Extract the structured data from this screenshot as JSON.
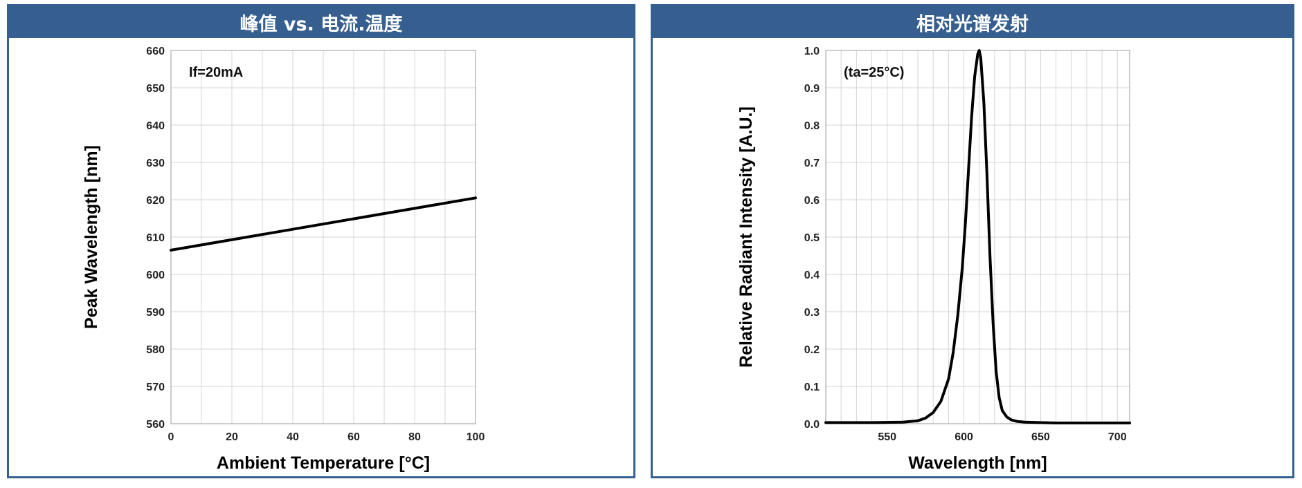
{
  "panels": {
    "left": {
      "header": "峰值 vs. 电流.温度"
    },
    "right": {
      "header": "相对光谱发射"
    }
  },
  "chart_data": [
    {
      "type": "line",
      "xlabel": "Ambient Temperature [°C]",
      "ylabel": "Peak Wavelength [nm]",
      "annotation": "If=20mA",
      "xlim": [
        0,
        100
      ],
      "ylim": [
        560,
        660
      ],
      "xticks": [
        0,
        20,
        40,
        60,
        80,
        100
      ],
      "yticks": [
        560,
        570,
        580,
        590,
        600,
        610,
        620,
        630,
        640,
        650,
        660
      ],
      "grid": true,
      "series": [
        {
          "x": [
            0,
            100
          ],
          "y": [
            606.5,
            620.5
          ]
        }
      ]
    },
    {
      "type": "line",
      "xlabel": "Wavelength [nm]",
      "ylabel": "Relative Radiant Intensity [A.U.]",
      "annotation": "(ta=25°C)",
      "xlim": [
        510,
        708
      ],
      "ylim": [
        0,
        1.0
      ],
      "xticks": [
        550,
        600,
        650,
        700
      ],
      "yticks": [
        0.0,
        0.1,
        0.2,
        0.3,
        0.4,
        0.5,
        0.6,
        0.7,
        0.8,
        0.9,
        1.0
      ],
      "ytick_labels": [
        "0.0",
        "0.1",
        "0.2",
        "0.3",
        "0.4",
        "0.5",
        "0.6",
        "0.7",
        "0.8",
        "0.9",
        "1.0"
      ],
      "grid": true,
      "series": [
        {
          "x": [
            510,
            540,
            560,
            570,
            575,
            580,
            585,
            590,
            593,
            596,
            599,
            601,
            603,
            605,
            607,
            609,
            610,
            611,
            613,
            615,
            617,
            619,
            621,
            623,
            625,
            628,
            631,
            635,
            640,
            650,
            660,
            680,
            708
          ],
          "y": [
            0.003,
            0.003,
            0.004,
            0.008,
            0.015,
            0.03,
            0.06,
            0.12,
            0.19,
            0.29,
            0.42,
            0.54,
            0.68,
            0.82,
            0.93,
            0.99,
            1.0,
            0.98,
            0.86,
            0.67,
            0.45,
            0.27,
            0.14,
            0.07,
            0.035,
            0.018,
            0.01,
            0.006,
            0.004,
            0.003,
            0.002,
            0.002,
            0.002
          ]
        }
      ]
    }
  ]
}
